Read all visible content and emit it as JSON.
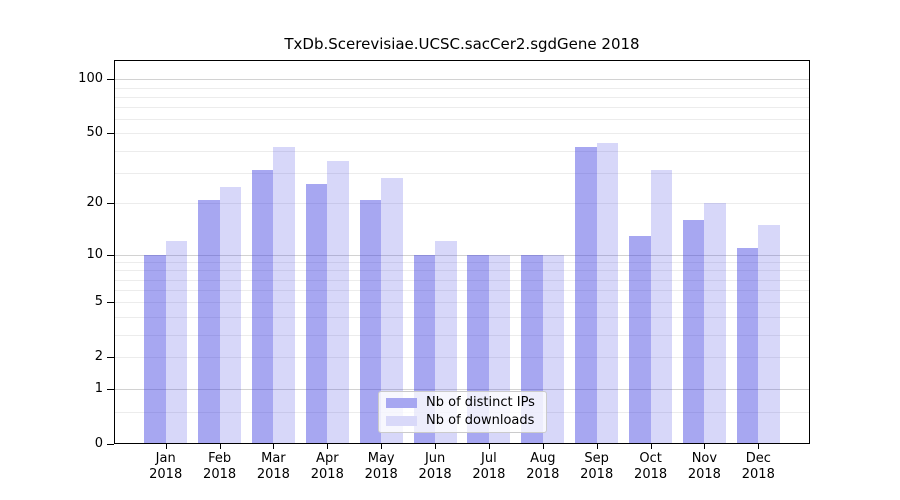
{
  "chart_data": {
    "type": "bar",
    "title": "TxDb.Scerevisiae.UCSC.sacCer2.sgdGene 2018",
    "categories": [
      "Jan",
      "Feb",
      "Mar",
      "Apr",
      "May",
      "Jun",
      "Jul",
      "Aug",
      "Sep",
      "Oct",
      "Nov",
      "Dec"
    ],
    "category_year": "2018",
    "series": [
      {
        "name": "Nb of distinct IPs",
        "color": "#a7a7f1",
        "bar_color": "rgba(60,60,224,0.45)",
        "values": [
          10,
          21,
          31,
          26,
          21,
          10,
          10,
          10,
          42,
          13,
          16,
          11
        ]
      },
      {
        "name": "Nb of downloads",
        "color": "#d9d9f9",
        "bar_color": "rgba(60,60,224,0.205)",
        "values": [
          12,
          25,
          42,
          35,
          28,
          12,
          10,
          10,
          44,
          31,
          20,
          15
        ]
      }
    ],
    "xlabel": "",
    "ylabel": "",
    "yaxis": {
      "scale": "log1p",
      "ylim": [
        0,
        128
      ],
      "tick_values": [
        0,
        1,
        2,
        5,
        10,
        20,
        50,
        100
      ],
      "major_gridlines": [
        1,
        10,
        100
      ],
      "minor_gridlines": [
        0.5,
        2,
        3,
        4,
        5,
        6,
        7,
        8,
        9,
        20,
        30,
        40,
        50,
        60,
        70,
        80,
        90
      ]
    },
    "grid": true,
    "legend_position": "lower-center"
  },
  "colors": {
    "major_grid": "#d2d2d2",
    "minor_grid": "#ececec",
    "axis": "#000000",
    "legend_border": "#cbcbcb"
  }
}
